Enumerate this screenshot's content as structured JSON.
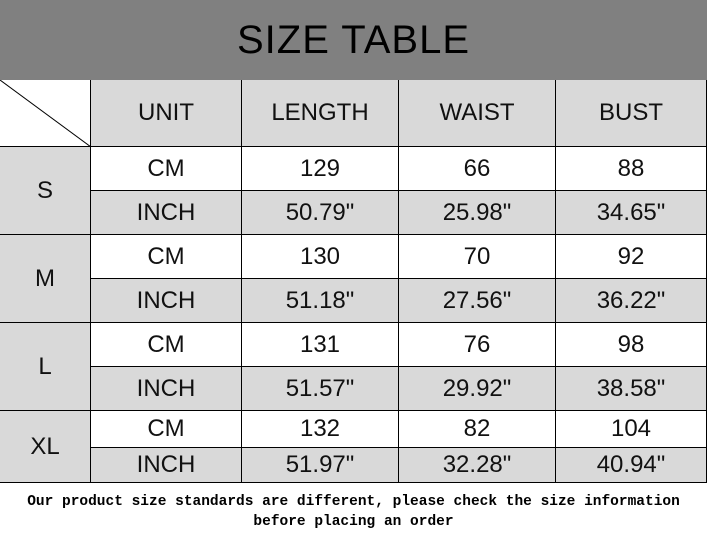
{
  "title": "SIZE TABLE",
  "headers": [
    "UNIT",
    "LENGTH",
    "WAIST",
    "BUST"
  ],
  "sizes": [
    {
      "size": "S",
      "rows": [
        {
          "unit": "CM",
          "length": "129",
          "waist": "66",
          "bust": "88"
        },
        {
          "unit": "INCH",
          "length": "50.79\"",
          "waist": "25.98\"",
          "bust": "34.65\""
        }
      ]
    },
    {
      "size": "M",
      "rows": [
        {
          "unit": "CM",
          "length": "130",
          "waist": "70",
          "bust": "92"
        },
        {
          "unit": "INCH",
          "length": "51.18\"",
          "waist": "27.56\"",
          "bust": "36.22\""
        }
      ]
    },
    {
      "size": "L",
      "rows": [
        {
          "unit": "CM",
          "length": "131",
          "waist": "76",
          "bust": "98"
        },
        {
          "unit": "INCH",
          "length": "51.57\"",
          "waist": "29.92\"",
          "bust": "38.58\""
        }
      ]
    },
    {
      "size": "XL",
      "rows": [
        {
          "unit": "CM",
          "length": "132",
          "waist": "82",
          "bust": "104"
        },
        {
          "unit": "INCH",
          "length": "51.97\"",
          "waist": "32.28\"",
          "bust": "40.94\""
        }
      ]
    }
  ],
  "footer": {
    "line1": "Our product size standards are different, please check the size information",
    "line2": "before placing an order"
  },
  "colors": {
    "title_bg": "#808080",
    "cell_gray": "#d9d9d9"
  }
}
